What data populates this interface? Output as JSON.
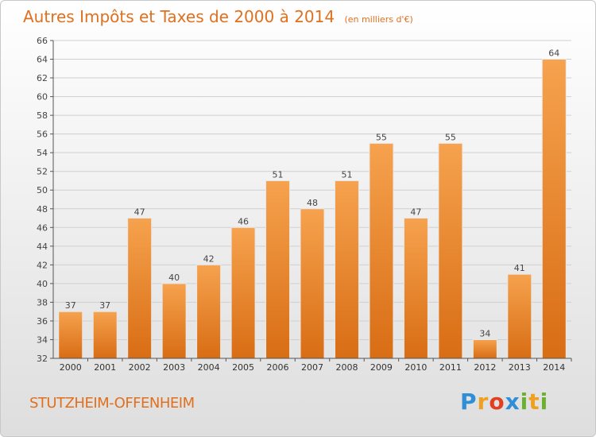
{
  "header": {
    "title": "Autres Impôts et Taxes de 2000 à 2014",
    "unit": "(en milliers d'€)"
  },
  "footer": {
    "commune": "STUTZHEIM-OFFENHEIM",
    "logo_letters": [
      "P",
      "r",
      "o",
      "x",
      "i",
      "t",
      "i"
    ],
    "logo_colors": [
      "#2f8fd6",
      "#f0a020",
      "#e04020",
      "#2f8fd6",
      "#6cb030",
      "#f0a020",
      "#6cb030"
    ]
  },
  "colors": {
    "accent": "#e0701e",
    "bar_top": "#f6a24e",
    "bar_bottom": "#d86d14"
  },
  "chart_data": {
    "type": "bar",
    "title": "Autres Impôts et Taxes de 2000 à 2014",
    "subtitle": "(en milliers d'€)",
    "categories": [
      "2000",
      "2001",
      "2002",
      "2003",
      "2004",
      "2005",
      "2006",
      "2007",
      "2008",
      "2009",
      "2010",
      "2011",
      "2012",
      "2013",
      "2014"
    ],
    "values": [
      37,
      37,
      47,
      40,
      42,
      46,
      51,
      48,
      51,
      55,
      47,
      55,
      34,
      41,
      64
    ],
    "ylim": [
      32,
      66
    ],
    "yticks": [
      32,
      34,
      36,
      38,
      40,
      42,
      44,
      46,
      48,
      50,
      52,
      54,
      56,
      58,
      60,
      62,
      64,
      66
    ],
    "grid": true,
    "data_labels": true
  }
}
